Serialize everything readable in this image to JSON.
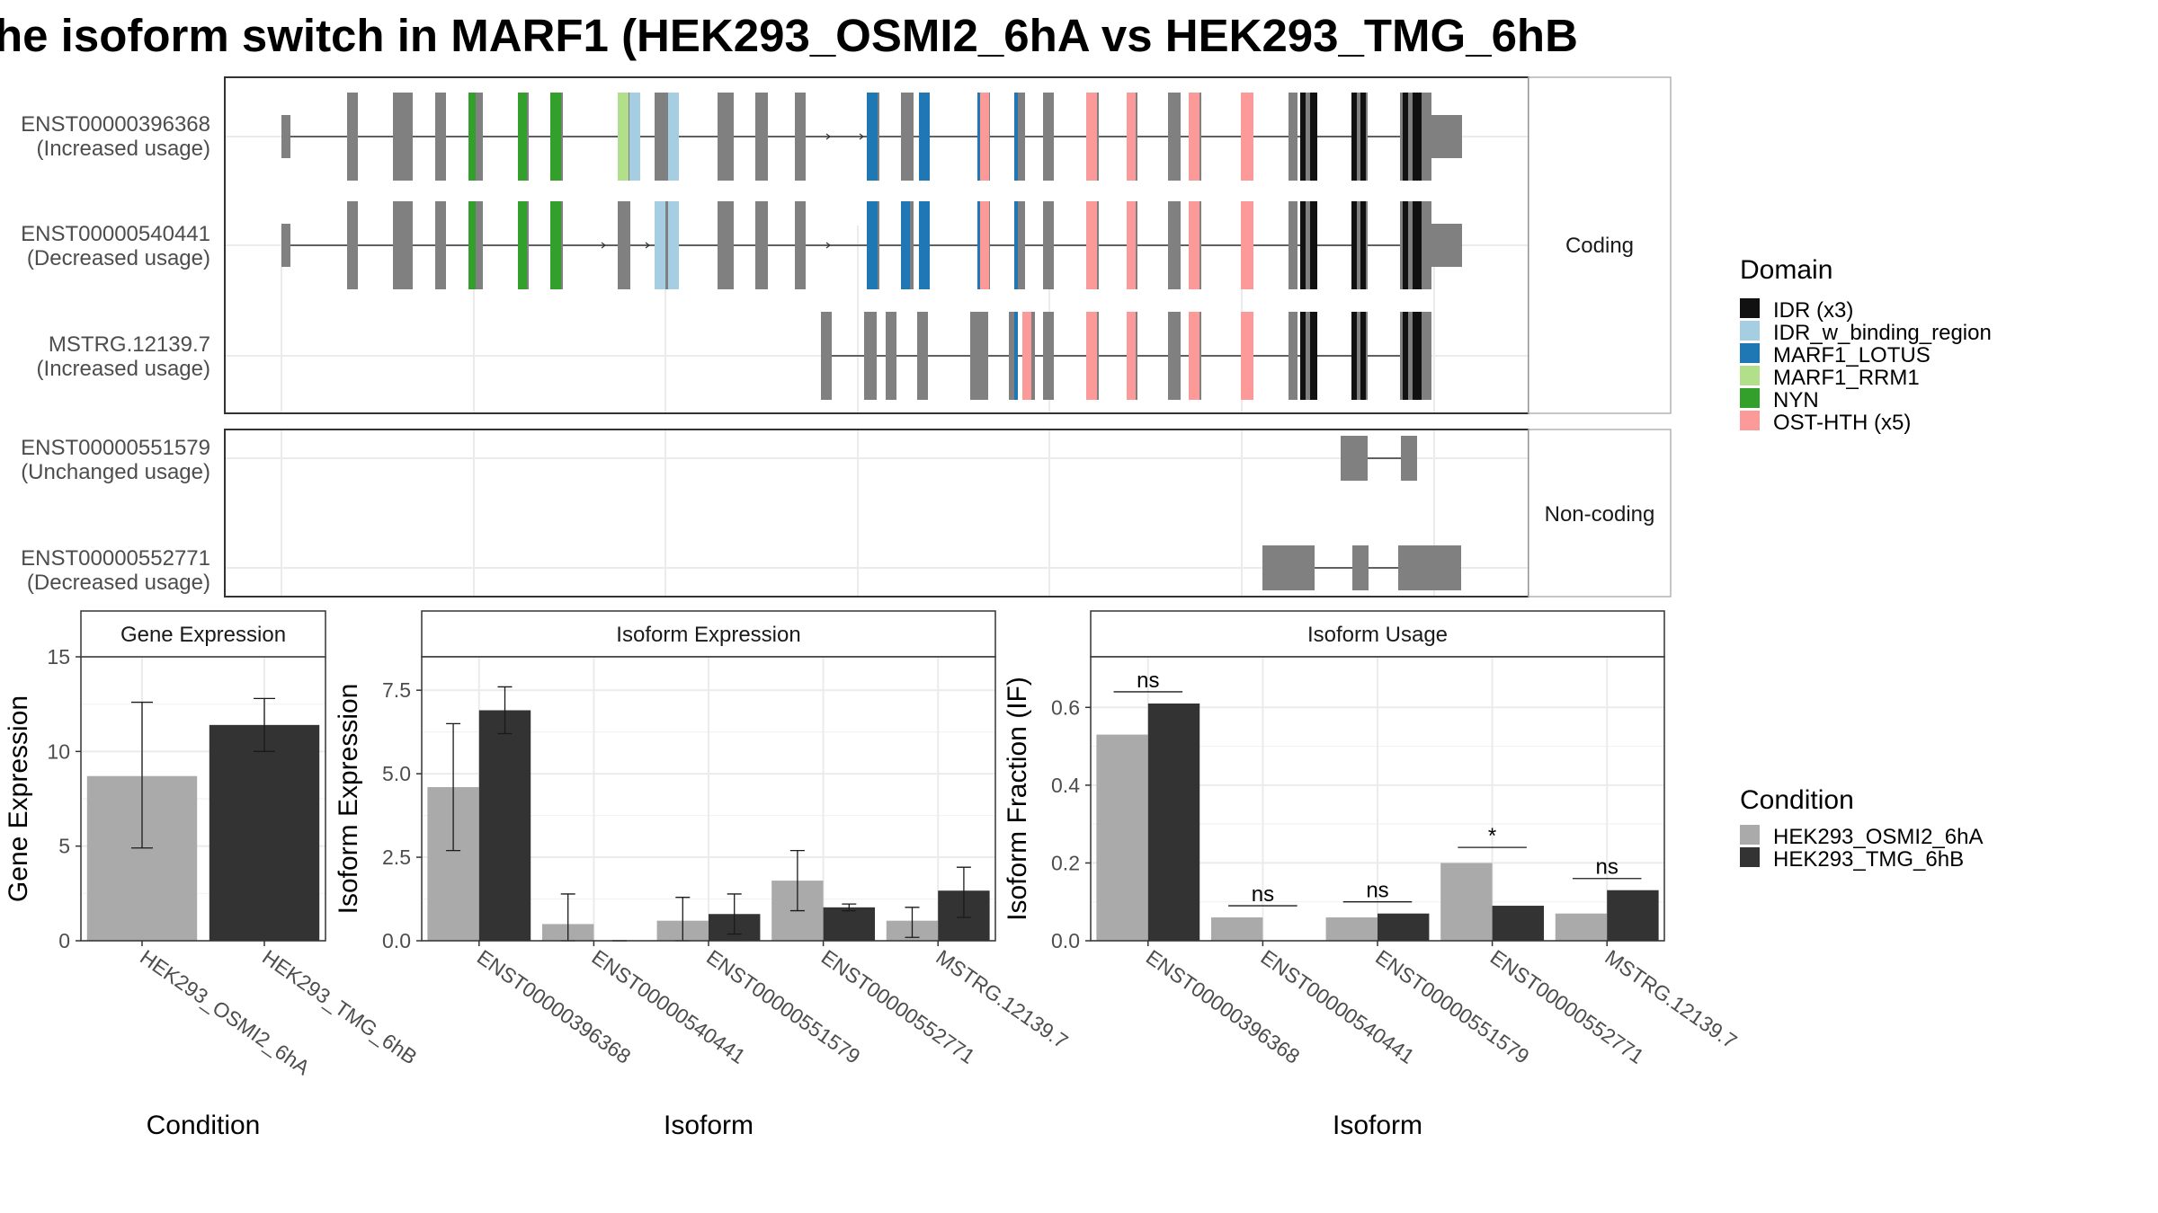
{
  "title": "he isoform switch in MARF1 (HEK293_OSMI2_6hA vs HEK293_TMG_6hB",
  "colors": {
    "exon": "#808080",
    "grid": "#ebebeb",
    "strip_border": "#b3b3b3",
    "cond_a": "#aaaaaa",
    "cond_b": "#333333"
  },
  "structure": {
    "strip_labels": {
      "coding": "Coding",
      "noncoding": "Non-coding"
    },
    "isoforms": [
      {
        "id": "ENST00000396368",
        "usage": "(Increased usage)",
        "group": "coding"
      },
      {
        "id": "ENST00000540441",
        "usage": "(Decreased usage)",
        "group": "coding"
      },
      {
        "id": "MSTRG.12139.7",
        "usage": "(Increased usage)",
        "group": "coding"
      },
      {
        "id": "ENST00000551579",
        "usage": "(Unchanged usage)",
        "group": "noncoding"
      },
      {
        "id": "ENST00000552771",
        "usage": "(Decreased usage)",
        "group": "noncoding"
      }
    ]
  },
  "domain_legend": {
    "title": "Domain",
    "items": [
      {
        "label": "IDR (x3)",
        "color": "#111111"
      },
      {
        "label": "IDR_w_binding_region",
        "color": "#a6cee3"
      },
      {
        "label": "MARF1_LOTUS",
        "color": "#1f78b4"
      },
      {
        "label": "MARF1_RRM1",
        "color": "#b2df8a"
      },
      {
        "label": "NYN",
        "color": "#33a02c"
      },
      {
        "label": "OST-HTH (x5)",
        "color": "#fb9a99"
      }
    ]
  },
  "condition_legend": {
    "title": "Condition",
    "items": [
      {
        "label": "HEK293_OSMI2_6hA",
        "color": "#aaaaaa"
      },
      {
        "label": "HEK293_TMG_6hB",
        "color": "#333333"
      }
    ]
  },
  "chart_data": [
    {
      "type": "bar",
      "title": "Gene Expression",
      "xlabel": "Condition",
      "ylabel": "Gene Expression",
      "ylim": [
        0,
        15
      ],
      "yticks": [
        0,
        5,
        10,
        15
      ],
      "ytick_labels": [
        "0",
        "5",
        "10",
        "15"
      ],
      "categories": [
        "HEK293_OSMI2_6hA",
        "HEK293_TMG_6hB"
      ],
      "values": [
        8.7,
        11.4
      ],
      "errors": [
        [
          4.9,
          12.6
        ],
        [
          10.0,
          12.8
        ]
      ]
    },
    {
      "type": "bar",
      "title": "Isoform Expression",
      "xlabel": "Isoform",
      "ylabel": "Isoform Expression",
      "ylim": [
        0,
        8.5
      ],
      "yticks": [
        0,
        2.5,
        5,
        7.5
      ],
      "ytick_labels": [
        "0.0",
        "2.5",
        "5.0",
        "7.5"
      ],
      "categories": [
        "ENST00000396368",
        "ENST00000540441",
        "ENST00000551579",
        "ENST00000552771",
        "MSTRG.12139.7"
      ],
      "series": [
        {
          "name": "HEK293_OSMI2_6hA",
          "values": [
            4.6,
            0.5,
            0.6,
            1.8,
            0.6
          ],
          "errors": [
            [
              2.7,
              6.5
            ],
            [
              0.0,
              1.4
            ],
            [
              0.0,
              1.3
            ],
            [
              0.9,
              2.7
            ],
            [
              0.1,
              1.0
            ]
          ]
        },
        {
          "name": "HEK293_TMG_6hB",
          "values": [
            6.9,
            0.0,
            0.8,
            1.0,
            1.5
          ],
          "errors": [
            [
              6.2,
              7.6
            ],
            [
              0.0,
              0.0
            ],
            [
              0.2,
              1.4
            ],
            [
              0.9,
              1.1
            ],
            [
              0.7,
              2.2
            ]
          ]
        }
      ]
    },
    {
      "type": "bar",
      "title": "Isoform Usage",
      "xlabel": "Isoform",
      "ylabel": "Isoform Fraction (IF)",
      "ylim": [
        0,
        0.73
      ],
      "yticks": [
        0,
        0.2,
        0.4,
        0.6
      ],
      "ytick_labels": [
        "0.0",
        "0.2",
        "0.4",
        "0.6"
      ],
      "categories": [
        "ENST00000396368",
        "ENST00000540441",
        "ENST00000551579",
        "ENST00000552771",
        "MSTRG.12139.7"
      ],
      "series": [
        {
          "name": "HEK293_OSMI2_6hA",
          "values": [
            0.53,
            0.06,
            0.06,
            0.2,
            0.07
          ]
        },
        {
          "name": "HEK293_TMG_6hB",
          "values": [
            0.61,
            0.0,
            0.07,
            0.09,
            0.13
          ]
        }
      ],
      "significance": [
        "ns",
        "ns",
        "ns",
        "*",
        "ns"
      ],
      "significance_y": [
        0.64,
        0.09,
        0.1,
        0.24,
        0.16
      ]
    }
  ]
}
